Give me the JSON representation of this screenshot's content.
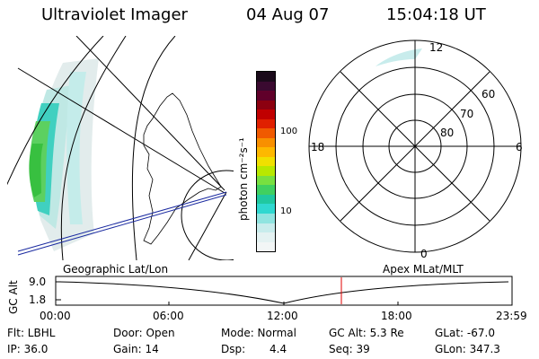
{
  "header": {
    "instrument": "Ultraviolet Imager",
    "date": "04 Aug 07",
    "time": "15:04:18 UT"
  },
  "colorbar": {
    "unit_label": "photon cm⁻²s⁻¹",
    "ticks": [
      "100",
      "10"
    ],
    "colors": [
      "#1a0a1a",
      "#3a0a30",
      "#60002a",
      "#8c0010",
      "#c00000",
      "#e02000",
      "#f05a00",
      "#f89000",
      "#fdb800",
      "#f0e000",
      "#b8e800",
      "#78e040",
      "#40d060",
      "#20c8a0",
      "#30d8d0",
      "#90e4e0",
      "#c8ecec",
      "#e4f2f2",
      "#f2f6f6"
    ]
  },
  "polar_plot": {
    "mlt_labels": [
      "12",
      "18",
      "6",
      "0"
    ],
    "lat_labels": [
      "60",
      "70",
      "80"
    ]
  },
  "timeline": {
    "left_label": "Geographic Lat/Lon",
    "right_label": "Apex MLat/MLT",
    "axis_title": "GC Alt",
    "y_ticks": [
      "9.0",
      "1.8"
    ],
    "x_ticks": [
      "00:00",
      "06:00",
      "12:00",
      "18:00",
      "23:59"
    ],
    "marker_color": "#e00000"
  },
  "footer": {
    "flt": "Flt: LBHL",
    "ip": "IP: 36.0",
    "door": "Door: Open",
    "gain": "Gain: 14",
    "mode": "Mode: Normal",
    "dsp_label": "Dsp:",
    "dsp_value": "4.4",
    "gc_alt": "GC Alt: 5.3 Re",
    "seq": "Seq: 39",
    "glat": "GLat: -67.0",
    "glon": "GLon: 347.3"
  }
}
